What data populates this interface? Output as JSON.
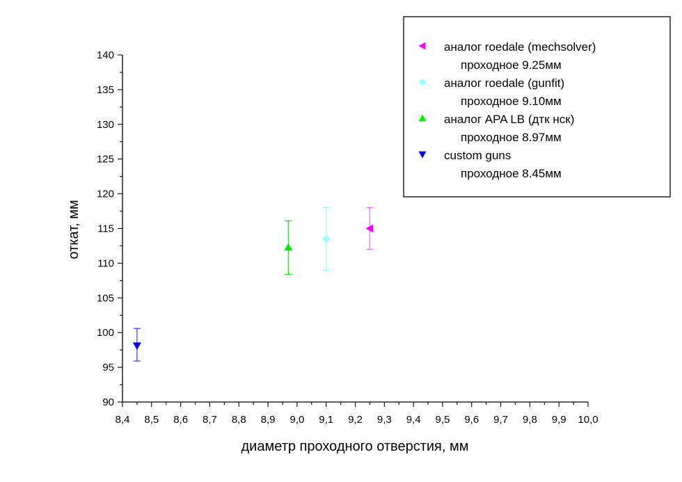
{
  "chart_data": {
    "type": "scatter",
    "xlabel": "диаметр проходного отверстия, мм",
    "ylabel": "откат, мм",
    "xlim": [
      8.4,
      10.0
    ],
    "ylim": [
      90,
      140
    ],
    "x_ticks": [
      "8,4",
      "8,5",
      "8,6",
      "8,7",
      "8,8",
      "8,9",
      "9,0",
      "9,1",
      "9,2",
      "9,3",
      "9,4",
      "9,5",
      "9,6",
      "9,7",
      "9,8",
      "9,9",
      "10,0"
    ],
    "y_ticks": [
      "90",
      "95",
      "100",
      "105",
      "110",
      "115",
      "120",
      "125",
      "130",
      "135",
      "140"
    ],
    "grid": false,
    "legend_position": "top-right",
    "series": [
      {
        "name": "аналог roedale (mechsolver)",
        "sublabel": "проходное 9.25мм",
        "x": 9.25,
        "y": 115.0,
        "err_low": 112.0,
        "err_high": 118.0,
        "marker": "triangle-left",
        "color": "#ff00ff",
        "error_color": "#ff66ff"
      },
      {
        "name": "аналог roedale (gunfit)",
        "sublabel": "проходное 9.10мм",
        "x": 9.1,
        "y": 113.5,
        "err_low": 109.0,
        "err_high": 118.0,
        "marker": "diamond",
        "color": "#99ffff",
        "error_color": "#99ffff"
      },
      {
        "name": "аналог APA LB (дтк нск)",
        "sublabel": "проходное 8.97мм",
        "x": 8.97,
        "y": 112.3,
        "err_low": 108.4,
        "err_high": 116.1,
        "marker": "triangle-up",
        "color": "#00ee00",
        "error_color": "#00ee00"
      },
      {
        "name": "custom guns",
        "sublabel": "проходное 8.45мм",
        "x": 8.45,
        "y": 98.1,
        "err_low": 95.9,
        "err_high": 100.6,
        "marker": "triangle-down",
        "color": "#0000ee",
        "error_color": "#3333ff"
      }
    ]
  }
}
